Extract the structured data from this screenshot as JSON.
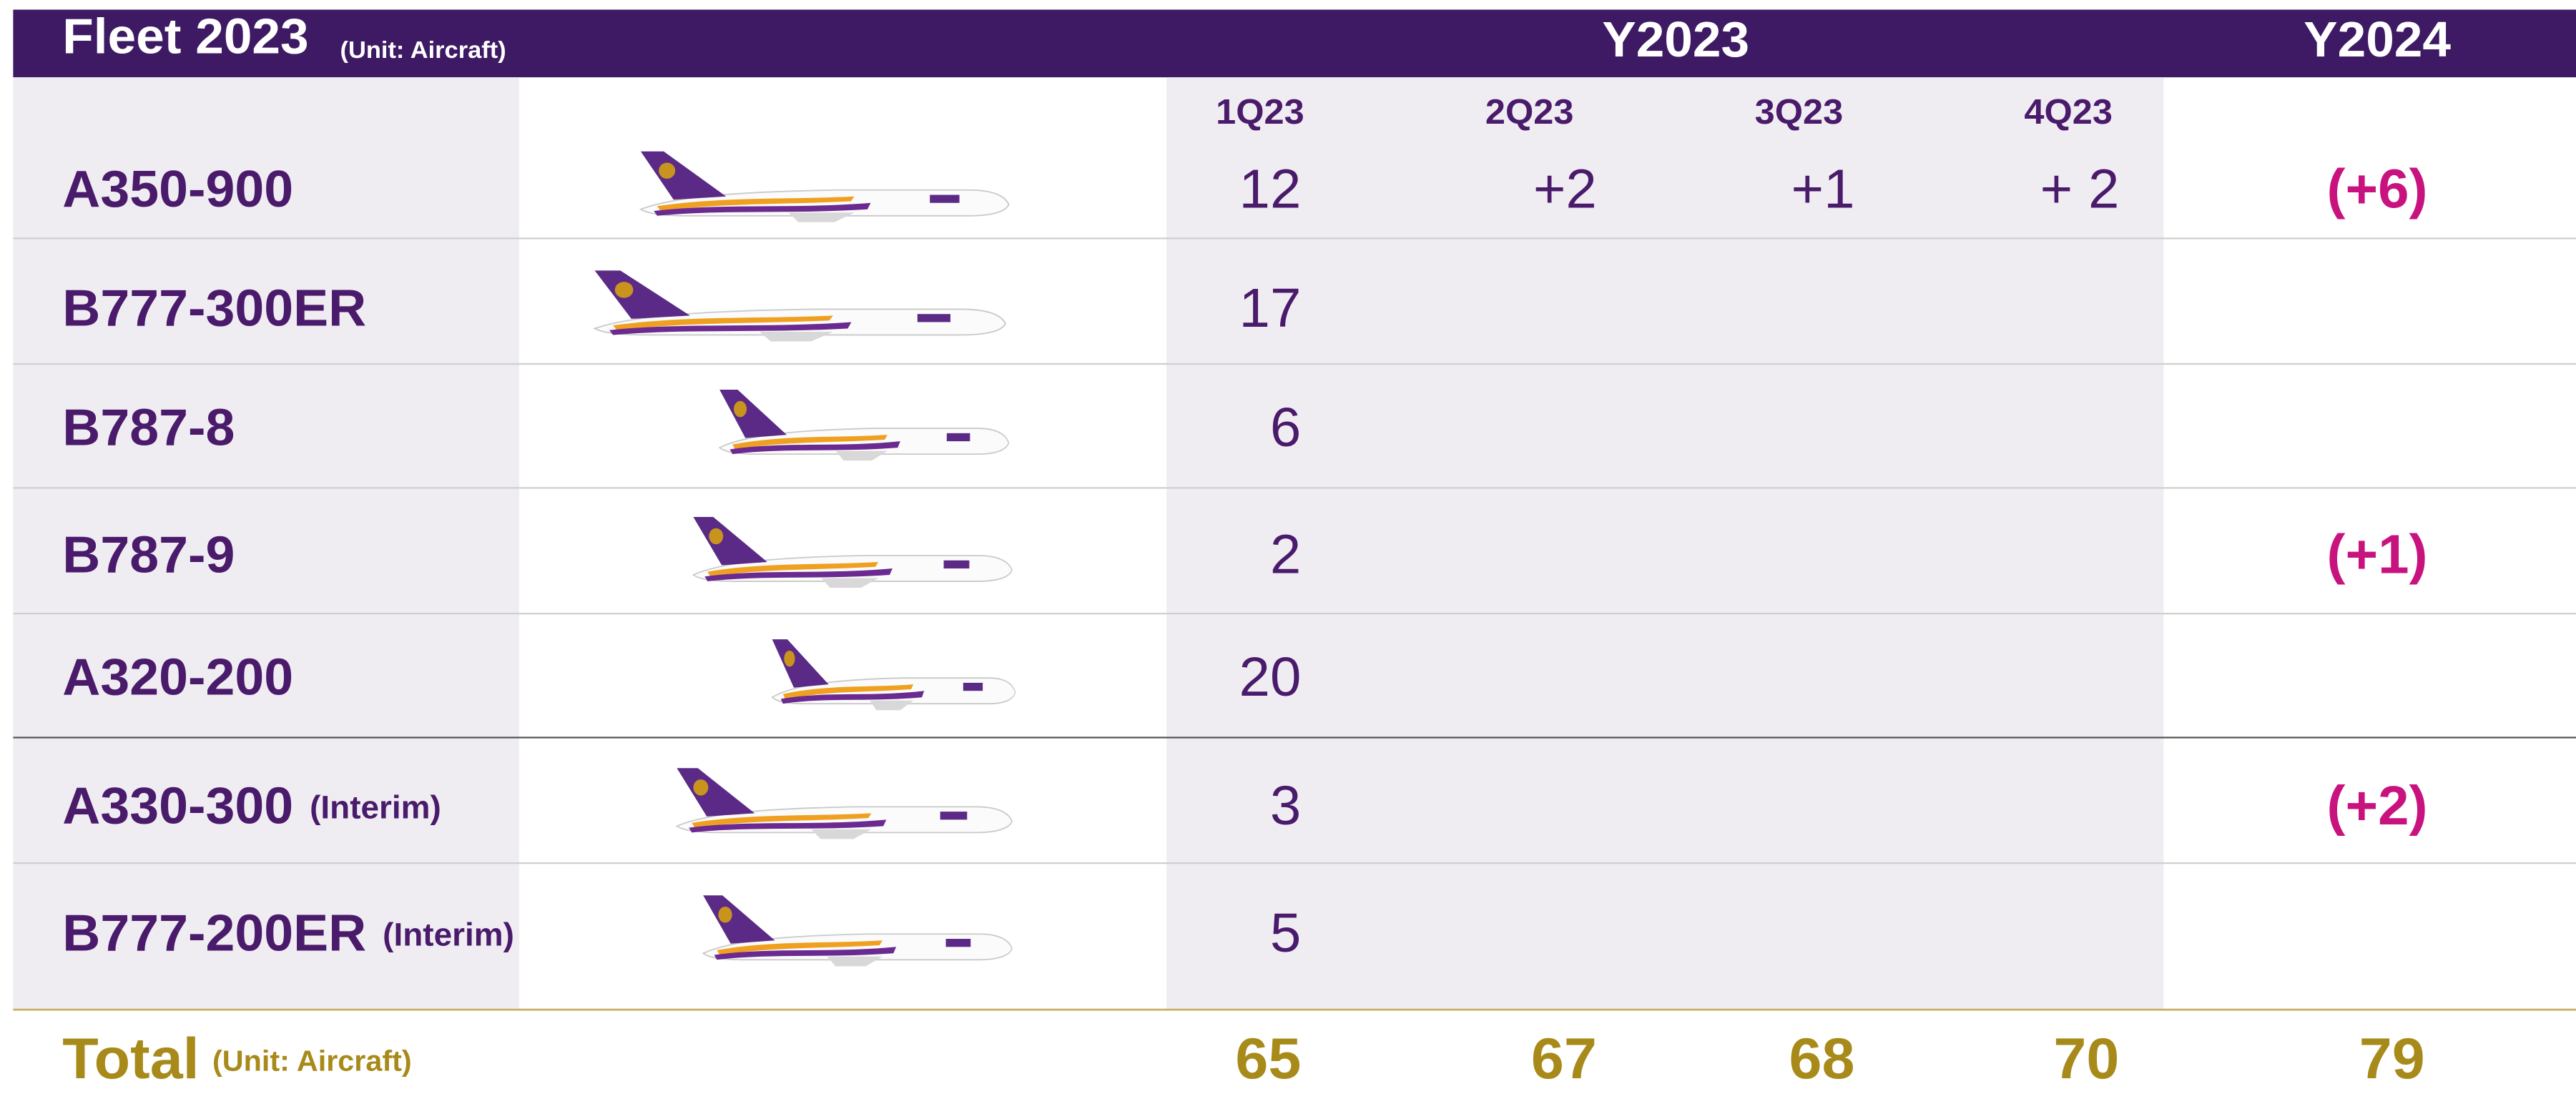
{
  "header": {
    "title": "Fleet 2023",
    "unit": "(Unit: Aircraft)",
    "groups": [
      "Y2023",
      "Y2024"
    ]
  },
  "quarters": [
    "1Q23",
    "2Q23",
    "3Q23",
    "4Q23"
  ],
  "rows": [
    {
      "name": "A350-900",
      "values": [
        "12",
        "+2",
        "+1",
        "+ 2"
      ],
      "y2024": "(+6)"
    },
    {
      "name": "B777-300ER",
      "values": [
        "17"
      ]
    },
    {
      "name": "B787-8",
      "values": [
        "6"
      ]
    },
    {
      "name": "B787-9",
      "values": [
        "2"
      ],
      "y2024": "(+1)"
    },
    {
      "name": "A320-200",
      "values": [
        "20"
      ]
    },
    {
      "name": "A330-300",
      "note": "(Interim)",
      "values": [
        "3"
      ],
      "y2024": "(+2)"
    },
    {
      "name": "B777-200ER",
      "note": "(Interim)",
      "values": [
        "5"
      ]
    }
  ],
  "total": {
    "label": "Total",
    "unit": "(Unit: Aircraft)",
    "values": [
      65,
      67,
      68,
      70
    ],
    "y2024": 79
  }
}
